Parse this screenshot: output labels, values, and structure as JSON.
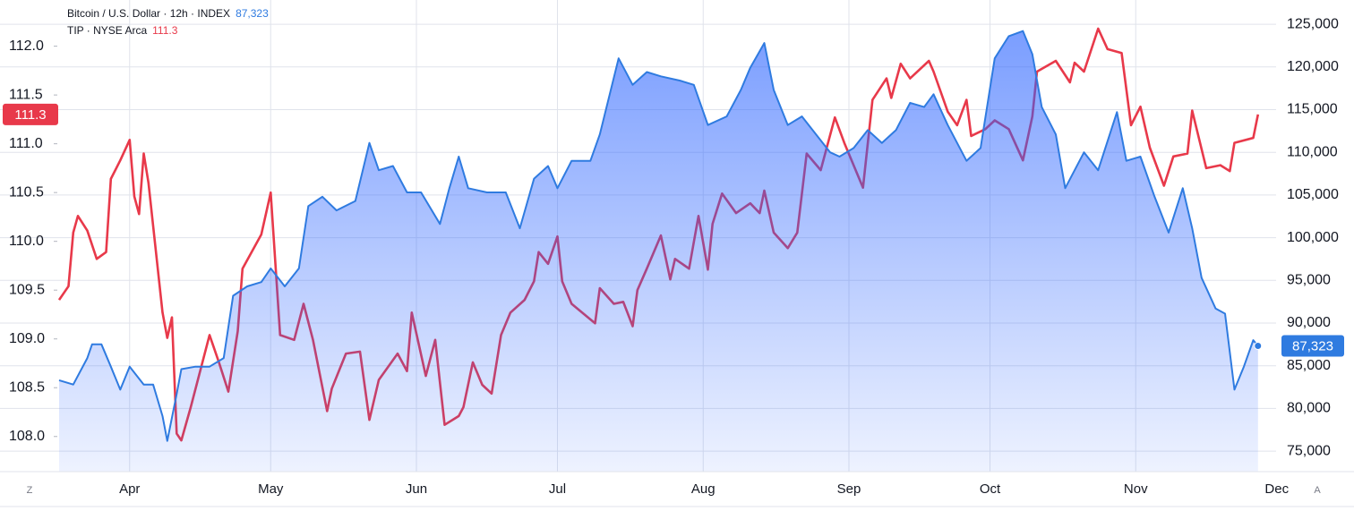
{
  "chart_data": {
    "type": "line",
    "controls": {
      "left": "Z",
      "right": "A"
    },
    "grid": true,
    "xlim": [
      76,
      334
    ],
    "xticks": [
      {
        "value": 91,
        "label": "Apr"
      },
      {
        "value": 121,
        "label": "May"
      },
      {
        "value": 152,
        "label": "Jun"
      },
      {
        "value": 182,
        "label": "Jul"
      },
      {
        "value": 213,
        "label": "Aug"
      },
      {
        "value": 244,
        "label": "Sep"
      },
      {
        "value": 274,
        "label": "Oct"
      },
      {
        "value": 305,
        "label": "Nov"
      },
      {
        "value": 335,
        "label": "Dec"
      }
    ],
    "ylim": [
      107.64,
      112.4
    ],
    "yticks": [
      {
        "value": 108,
        "label": "108.0"
      },
      108.5,
      {
        "value": 109,
        "label": "109.0"
      },
      109.5,
      {
        "value": 110,
        "label": "110.0"
      },
      110.5,
      {
        "value": 111,
        "label": "111.0"
      },
      111.5,
      {
        "value": 112,
        "label": "112.0"
      }
    ],
    "y2lim": [
      72600,
      127000
    ],
    "y2ticks": [
      {
        "value": 75000,
        "label": "75,000"
      },
      {
        "value": 80000,
        "label": "80,000"
      },
      {
        "value": 85000,
        "label": "85,000"
      },
      {
        "value": 90000,
        "label": "90,000"
      },
      {
        "value": 95000,
        "label": "95,000"
      },
      {
        "value": 100000,
        "label": "100,000"
      },
      {
        "value": 105000,
        "label": "105,000"
      },
      {
        "value": 110000,
        "label": "110,000"
      },
      {
        "value": 115000,
        "label": "115,000"
      },
      {
        "value": 120000,
        "label": "120,000"
      },
      {
        "value": 125000,
        "label": "125,000"
      }
    ],
    "series": [
      {
        "name": "Bitcoin / U.S. Dollar · 12h · INDEX",
        "color": "#2f7be0",
        "fill": true,
        "axis": "y2",
        "last_label": "87,323",
        "x": [
          76,
          79,
          82,
          83,
          85,
          87,
          89,
          91,
          94,
          96,
          98,
          99,
          101,
          102,
          105,
          108,
          111,
          113,
          116,
          119,
          121,
          124,
          127,
          129,
          132,
          135,
          139,
          142,
          144,
          147,
          150,
          153,
          157,
          159,
          161,
          163,
          167,
          171,
          174,
          177,
          180,
          182,
          185,
          189,
          191,
          195,
          198,
          201,
          204,
          208,
          211,
          214,
          218,
          221,
          223,
          226,
          228,
          231,
          234,
          237,
          240,
          242,
          245,
          248,
          251,
          254,
          257,
          260,
          262,
          265,
          269,
          272,
          275,
          278,
          281,
          283,
          285,
          288,
          290,
          294,
          297,
          301,
          303,
          306,
          309,
          312,
          315,
          317,
          319,
          322,
          324,
          326,
          328,
          330,
          331
        ],
        "values": [
          83300,
          82800,
          85900,
          87500,
          87500,
          84900,
          82200,
          84900,
          82800,
          82800,
          79100,
          76200,
          81700,
          84600,
          84900,
          84900,
          85900,
          93200,
          94300,
          94800,
          96400,
          94300,
          96400,
          103700,
          104800,
          103200,
          104300,
          111100,
          107900,
          108400,
          105300,
          105300,
          101600,
          105800,
          109500,
          105800,
          105300,
          105300,
          101100,
          106900,
          108400,
          105800,
          109000,
          109000,
          112100,
          121000,
          117900,
          119400,
          118900,
          118400,
          117900,
          113200,
          114200,
          117300,
          119900,
          122800,
          117300,
          113200,
          114200,
          112100,
          110000,
          109500,
          110500,
          112600,
          111100,
          112600,
          115800,
          115300,
          116800,
          113200,
          109000,
          110500,
          121000,
          123600,
          124200,
          121500,
          115300,
          112100,
          105800,
          110000,
          107900,
          114700,
          109000,
          109500,
          104800,
          100600,
          105800,
          101100,
          95300,
          91700,
          91100,
          82200,
          84900,
          88000,
          87323
        ]
      },
      {
        "name": "TIP · NYSE Arca",
        "color": "#e8394a",
        "fill": false,
        "axis": "y",
        "x": [
          76,
          78,
          79,
          80,
          82,
          84,
          86,
          87,
          89,
          91,
          92,
          93,
          94,
          95,
          98,
          99,
          100,
          101,
          102,
          104,
          108,
          110,
          112,
          114,
          115,
          119,
          121,
          123,
          126,
          128,
          130,
          133,
          134,
          137,
          140,
          142,
          144,
          148,
          150,
          151,
          154,
          156,
          158,
          161,
          162,
          164,
          166,
          168,
          170,
          172,
          175,
          177,
          178,
          180,
          182,
          183,
          185,
          190,
          191,
          194,
          196,
          198,
          199,
          201,
          204,
          206,
          207,
          210,
          212,
          214,
          215,
          217,
          220,
          223,
          225,
          226,
          228,
          231,
          233,
          235,
          238,
          241,
          243,
          247,
          249,
          252,
          253,
          255,
          257,
          261,
          262,
          265,
          267,
          269,
          270,
          273,
          275,
          278,
          281,
          283,
          284,
          288,
          291,
          292,
          294,
          297,
          299,
          302,
          304,
          306,
          308,
          311,
          313,
          316,
          317,
          320,
          323,
          325,
          326,
          330,
          331
        ],
        "values": [
          109.4,
          109.54,
          110.09,
          110.26,
          110.11,
          109.82,
          109.89,
          110.64,
          110.83,
          111.04,
          110.46,
          110.28,
          110.9,
          110.6,
          109.27,
          109.01,
          109.22,
          108.03,
          107.96,
          108.3,
          109.04,
          108.76,
          108.46,
          109.08,
          109.72,
          110.07,
          110.5,
          109.04,
          108.99,
          109.36,
          108.99,
          108.26,
          108.49,
          108.85,
          108.87,
          108.17,
          108.58,
          108.85,
          108.67,
          109.27,
          108.62,
          108.99,
          108.12,
          108.21,
          108.3,
          108.76,
          108.53,
          108.44,
          109.04,
          109.27,
          109.4,
          109.59,
          109.89,
          109.77,
          110.05,
          109.59,
          109.36,
          109.16,
          109.52,
          109.36,
          109.38,
          109.13,
          109.5,
          109.72,
          110.06,
          109.61,
          109.82,
          109.72,
          110.26,
          109.71,
          110.18,
          110.49,
          110.29,
          110.39,
          110.29,
          110.52,
          110.09,
          109.93,
          110.09,
          110.9,
          110.73,
          111.27,
          111.01,
          110.55,
          111.45,
          111.67,
          111.47,
          111.82,
          111.67,
          111.85,
          111.74,
          111.33,
          111.19,
          111.45,
          111.08,
          111.15,
          111.24,
          111.15,
          110.83,
          111.28,
          111.74,
          111.85,
          111.63,
          111.83,
          111.74,
          112.18,
          111.97,
          111.93,
          111.19,
          111.38,
          110.96,
          110.57,
          110.87,
          110.9,
          111.34,
          110.75,
          110.78,
          110.72,
          111.01,
          111.06,
          111.3
        ]
      }
    ]
  }
}
